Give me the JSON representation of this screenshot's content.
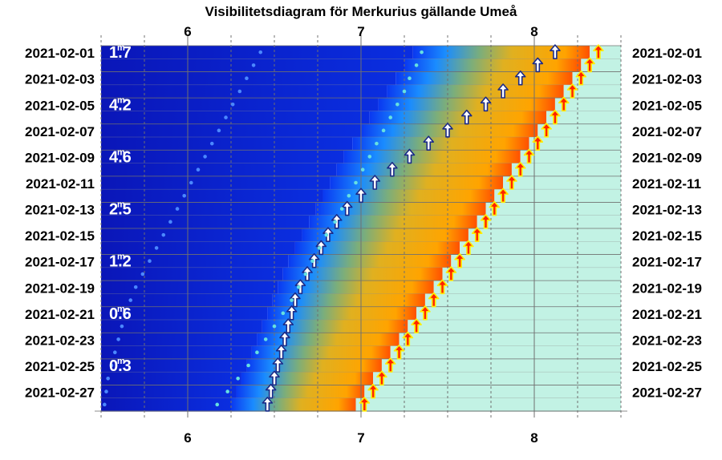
{
  "chart_data": {
    "type": "heatmap",
    "title": "Visibilitetsdiagram för Merkurius gällande Umeå",
    "xlabel": "",
    "ylabel": "",
    "x_tick_labels": [
      "6",
      "7",
      "8"
    ],
    "x_ticks": [
      6,
      7,
      8
    ],
    "xlim": [
      5.5,
      8.5
    ],
    "x_minor_step": 0.25,
    "grid": true,
    "date_range": [
      "2021-02-01",
      "2021-02-28"
    ],
    "y_tick_labels": [
      "2021-02-01",
      "2021-02-03",
      "2021-02-05",
      "2021-02-07",
      "2021-02-09",
      "2021-02-11",
      "2021-02-13",
      "2021-02-15",
      "2021-02-17",
      "2021-02-19",
      "2021-02-21",
      "2021-02-23",
      "2021-02-25",
      "2021-02-27"
    ],
    "magnitude_labels": [
      {
        "date": "2021-02-01",
        "text": "1.7"
      },
      {
        "date": "2021-02-05",
        "text": "4.2"
      },
      {
        "date": "2021-02-09",
        "text": "4.6"
      },
      {
        "date": "2021-02-13",
        "text": "2.5"
      },
      {
        "date": "2021-02-17",
        "text": "1.2"
      },
      {
        "date": "2021-02-21",
        "text": "0.6"
      },
      {
        "date": "2021-02-25",
        "text": "0.3"
      }
    ],
    "magnitude_superscript": "m",
    "twilight_start_x": [
      7.3,
      7.25,
      7.2,
      7.15,
      7.1,
      7.05,
      7.0,
      6.95,
      6.9,
      6.86,
      6.82,
      6.78,
      6.74,
      6.7,
      6.66,
      6.62,
      6.58,
      6.55,
      6.52,
      6.49,
      6.46,
      6.43,
      6.4,
      6.37,
      6.34,
      6.31,
      6.28,
      6.25
    ],
    "sunrise_x": [
      8.32,
      8.27,
      8.22,
      8.17,
      8.12,
      8.07,
      8.02,
      7.97,
      7.92,
      7.87,
      7.82,
      7.77,
      7.72,
      7.67,
      7.62,
      7.57,
      7.52,
      7.47,
      7.42,
      7.37,
      7.32,
      7.27,
      7.22,
      7.17,
      7.12,
      7.07,
      7.02,
      6.97
    ],
    "series": [
      {
        "values": [
          8.12,
          8.02,
          7.92,
          7.82,
          7.72,
          7.61,
          7.5,
          7.39,
          7.28,
          7.18,
          7.08,
          7.0,
          6.92,
          6.86,
          6.81,
          6.77,
          6.73,
          6.69,
          6.65,
          6.62,
          6.6,
          6.58,
          6.56,
          6.54,
          6.52,
          6.5,
          6.48,
          6.46
        ],
        "marker": "arrow",
        "color": "#ffffff",
        "outline": "#1a2a88"
      },
      {
        "values": [
          8.37,
          8.32,
          8.27,
          8.22,
          8.17,
          8.12,
          8.07,
          8.02,
          7.97,
          7.92,
          7.87,
          7.82,
          7.77,
          7.72,
          7.67,
          7.62,
          7.57,
          7.52,
          7.47,
          7.42,
          7.37,
          7.32,
          7.27,
          7.22,
          7.17,
          7.12,
          7.07,
          7.02
        ],
        "marker": "arrow",
        "color": "#ff2200",
        "outline": "#ffee00"
      },
      {
        "values": [
          7.35,
          7.32,
          7.28,
          7.25,
          7.21,
          7.17,
          7.13,
          7.09,
          7.05,
          7.01,
          6.97,
          6.93,
          6.89,
          6.85,
          6.8,
          6.76,
          6.72,
          6.68,
          6.64,
          6.6,
          6.55,
          6.5,
          6.45,
          6.4,
          6.35,
          6.29,
          6.23,
          6.17
        ],
        "marker": "dot",
        "color": "#66e0e0"
      },
      {
        "values": [
          6.42,
          6.38,
          6.34,
          6.3,
          6.26,
          6.22,
          6.18,
          6.14,
          6.1,
          6.06,
          6.02,
          5.98,
          5.94,
          5.9,
          5.86,
          5.82,
          5.78,
          5.74,
          5.7,
          5.67,
          5.64,
          5.62,
          5.6,
          5.58,
          5.56,
          5.54,
          5.53,
          5.52
        ],
        "marker": "dot",
        "color": "#4b88ff"
      }
    ],
    "colors": {
      "night": "#0a1cc0",
      "twilight": "#f4b000",
      "dawn": "#ff6a00",
      "day": "#c2f2e4",
      "grid": "#707070"
    }
  }
}
